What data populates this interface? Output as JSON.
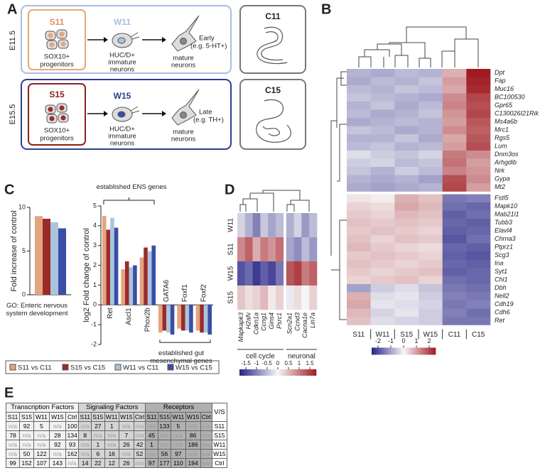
{
  "panel_a": {
    "letter": "A",
    "rows": [
      {
        "stage": "E11.5",
        "progenitor": "S11",
        "immature": "W11",
        "culture": "C11",
        "mature_note": [
          "Early",
          "(e.g. 5-HT+)"
        ]
      },
      {
        "stage": "E15.5",
        "progenitor": "S15",
        "immature": "W15",
        "culture": "C15",
        "mature_note": [
          "Late",
          "(e.g. TH+)"
        ]
      }
    ],
    "progenitor_label": [
      "SOX10+",
      "progenitors"
    ],
    "immature_label": [
      "HUC/D+",
      "immature",
      "neurons"
    ],
    "mature_label": [
      "mature",
      "neurons"
    ]
  },
  "letters": {
    "b": "B",
    "c": "C",
    "d": "D",
    "e": "E"
  },
  "chart_data": [
    {
      "type": "bar",
      "categories": [
        "GO: Enteric nervous system development"
      ],
      "ylabel": "Fold increase of control",
      "ylim": [
        0,
        10
      ],
      "yticks": [
        0,
        5,
        10
      ],
      "series": [
        {
          "name": "S11 vs C11",
          "color": "#e3a57f",
          "values": [
            9.0
          ]
        },
        {
          "name": "S15 vs C15",
          "color": "#9b2b2b",
          "values": [
            8.7
          ]
        },
        {
          "name": "W11 vs C11",
          "color": "#a9c5dd",
          "values": [
            8.3
          ]
        },
        {
          "name": "W15 vs C15",
          "color": "#3a4ea5",
          "values": [
            7.6
          ]
        }
      ]
    },
    {
      "type": "bar",
      "categories": [
        "Ret",
        "Ascl1",
        "Phox2b",
        "GATA6",
        "Foxf1",
        "Foxf2"
      ],
      "ylabel": "log2 Fold change of control",
      "ylim": [
        -2,
        5
      ],
      "yticks": [
        -2,
        -1,
        0,
        1,
        2,
        3,
        4,
        5
      ],
      "annotations": [
        "established ENS genes",
        "established gut mesenchymal genes"
      ],
      "series": [
        {
          "color": "#e3a57f",
          "values": [
            4.5,
            1.8,
            2.4,
            -1.4,
            -1.2,
            -1.3
          ]
        },
        {
          "color": "#9b2b2b",
          "values": [
            3.8,
            2.2,
            2.9,
            -1.3,
            -1.3,
            -1.4
          ]
        },
        {
          "color": "#a9c5dd",
          "values": [
            4.4,
            1.9,
            2.7,
            -1.4,
            -1.3,
            -1.4
          ]
        },
        {
          "color": "#3a4ea5",
          "values": [
            3.9,
            2.0,
            3.0,
            -1.5,
            -1.4,
            -1.5
          ]
        }
      ]
    },
    {
      "type": "heatmap",
      "rows": [
        "Dpt",
        "Fap",
        "Muc16",
        "BC100530",
        "Gpr65",
        "C130026I21Rik",
        "Ms4a6b",
        "Mrc1",
        "Rgs5",
        "Lum",
        "Dnm3os",
        "Arhgdib",
        "Nrk",
        "Gypa",
        "Mt2",
        "Fstl5",
        "Mapk10",
        "Mab21l1",
        "Tubb3",
        "Elavl4",
        "Chrna3",
        "Ptprz1",
        "Scg3",
        "Ina",
        "Syt1",
        "Chl1",
        "Dbh",
        "Nell2",
        "Cdh19",
        "Cdh6",
        "Ret"
      ],
      "columns": [
        "S11",
        "W11",
        "S15",
        "W15",
        "C11",
        "C15"
      ],
      "clim": [
        -2.5,
        2.5
      ],
      "cticks": [
        -2,
        -1,
        0,
        1,
        2
      ],
      "values": [
        [
          -0.8,
          -0.9,
          -0.7,
          -0.8,
          0.8,
          2.5
        ],
        [
          -0.9,
          -0.7,
          -0.8,
          -0.6,
          1.0,
          2.4
        ],
        [
          -0.7,
          -0.8,
          -0.6,
          -0.7,
          0.9,
          2.3
        ],
        [
          -0.6,
          -0.7,
          -0.8,
          -0.9,
          1.2,
          2.0
        ],
        [
          -0.8,
          -0.6,
          -0.9,
          -0.7,
          1.3,
          1.9
        ],
        [
          -0.7,
          -0.9,
          -0.8,
          -0.6,
          1.1,
          2.0
        ],
        [
          -0.9,
          -0.8,
          -0.7,
          -0.8,
          1.0,
          1.8
        ],
        [
          -0.6,
          -0.7,
          -0.9,
          -0.8,
          1.2,
          1.7
        ],
        [
          -0.8,
          -0.8,
          -0.6,
          -0.9,
          0.9,
          1.8
        ],
        [
          -0.7,
          -0.6,
          -0.8,
          -0.7,
          1.0,
          1.9
        ],
        [
          -0.3,
          -0.5,
          -0.6,
          -0.4,
          1.4,
          1.2
        ],
        [
          -0.5,
          -0.4,
          -0.7,
          -0.6,
          1.5,
          1.0
        ],
        [
          -0.6,
          -0.8,
          -0.5,
          -0.7,
          1.3,
          1.1
        ],
        [
          -0.8,
          -0.9,
          -0.8,
          -1.0,
          1.9,
          1.2
        ],
        [
          -0.9,
          -1.0,
          -0.9,
          -0.8,
          2.0,
          1.0
        ],
        [
          0.2,
          0.1,
          0.8,
          0.6,
          -1.5,
          -1.4
        ],
        [
          0.4,
          0.3,
          0.9,
          0.7,
          -1.6,
          -1.7
        ],
        [
          0.5,
          0.4,
          0.7,
          0.6,
          -1.8,
          -1.6
        ],
        [
          0.6,
          0.5,
          0.6,
          0.5,
          -1.7,
          -1.8
        ],
        [
          0.5,
          0.6,
          0.5,
          0.4,
          -1.8,
          -1.7
        ],
        [
          0.6,
          0.4,
          0.6,
          0.5,
          -1.9,
          -1.6
        ],
        [
          0.7,
          0.5,
          0.4,
          0.3,
          -1.7,
          -1.8
        ],
        [
          0.5,
          0.6,
          0.5,
          0.4,
          -1.8,
          -1.9
        ],
        [
          0.6,
          0.5,
          0.4,
          0.5,
          -1.7,
          -1.8
        ],
        [
          0.5,
          0.4,
          0.5,
          0.6,
          -1.8,
          -1.7
        ],
        [
          0.4,
          0.5,
          0.6,
          0.4,
          -1.6,
          -1.7
        ],
        [
          -1.0,
          -0.5,
          -0.3,
          -0.6,
          -1.5,
          -1.6
        ],
        [
          0.8,
          -0.3,
          -0.2,
          -0.5,
          -1.4,
          -1.5
        ],
        [
          0.9,
          -0.2,
          -0.3,
          -0.4,
          -1.5,
          -1.4
        ],
        [
          0.7,
          -0.4,
          -0.2,
          -0.5,
          -1.4,
          -1.6
        ],
        [
          0.6,
          -0.3,
          -0.4,
          -0.5,
          -1.5,
          -1.5
        ]
      ]
    },
    {
      "type": "heatmap",
      "rows": [
        "W11",
        "S11",
        "W15",
        "S15"
      ],
      "columns": [
        "Mapkapk3",
        "H2afv",
        "Cdkn1a",
        "Ccng1",
        "Gins4",
        "Psrc1",
        "Scn2a1",
        "Ccnd3",
        "Cacna1e",
        "Lin7a"
      ],
      "column_groups": [
        "cell cycle",
        "neuronal"
      ],
      "clim": [
        -1.8,
        1.8
      ],
      "cticks": [
        -1.5,
        -1,
        -0.5,
        0,
        0.5,
        1,
        1.5
      ],
      "values": [
        [
          -0.3,
          -0.6,
          -1.0,
          -0.4,
          -0.7,
          -0.5,
          -0.6,
          -0.3,
          -0.8,
          -0.5
        ],
        [
          0.9,
          1.2,
          0.6,
          1.0,
          0.8,
          1.1,
          -0.7,
          -0.9,
          -0.5,
          -0.8
        ],
        [
          -1.4,
          -1.2,
          -1.6,
          -1.3,
          -1.5,
          -1.1,
          1.3,
          1.5,
          1.0,
          1.2
        ],
        [
          0.4,
          0.2,
          0.3,
          0.5,
          0.1,
          0.3,
          -0.1,
          0.2,
          0.0,
          0.3
        ]
      ]
    }
  ],
  "table": {
    "groups": [
      "Transcription Factors",
      "Signaling Factors",
      "Receptors"
    ],
    "corner": "V/S",
    "columns": [
      "S11",
      "S15",
      "W11",
      "W15",
      "Ctrl"
    ],
    "rows": [
      {
        "label": "S11",
        "cells": [
          "n/a",
          92,
          5,
          "n/a",
          100,
          "n/a",
          27,
          1,
          "n/a",
          "n/a",
          "n/a",
          133,
          5,
          "n/a",
          "n/a"
        ]
      },
      {
        "label": "S15",
        "cells": [
          78,
          "n/a",
          "n/a",
          28,
          134,
          8,
          "n/a",
          "n/a",
          7,
          "n/a",
          45,
          "n/a",
          "n/a",
          86,
          "n/a"
        ]
      },
      {
        "label": "W11",
        "cells": [
          "n/a",
          "n/a",
          "n/a",
          92,
          93,
          "n/a",
          1,
          "n/a",
          26,
          42,
          1,
          "n/a",
          "n/a",
          186,
          "n/a"
        ]
      },
      {
        "label": "W15",
        "cells": [
          "n/a",
          50,
          122,
          "n/a",
          162,
          "n/a",
          6,
          16,
          "n/a",
          52,
          "n/a",
          56,
          97,
          "n/a",
          "n/a"
        ]
      },
      {
        "label": "Ctrl",
        "cells": [
          99,
          152,
          107,
          143,
          "n/a",
          14,
          22,
          12,
          26,
          "n/a",
          97,
          177,
          110,
          194,
          "n/a"
        ]
      }
    ]
  }
}
